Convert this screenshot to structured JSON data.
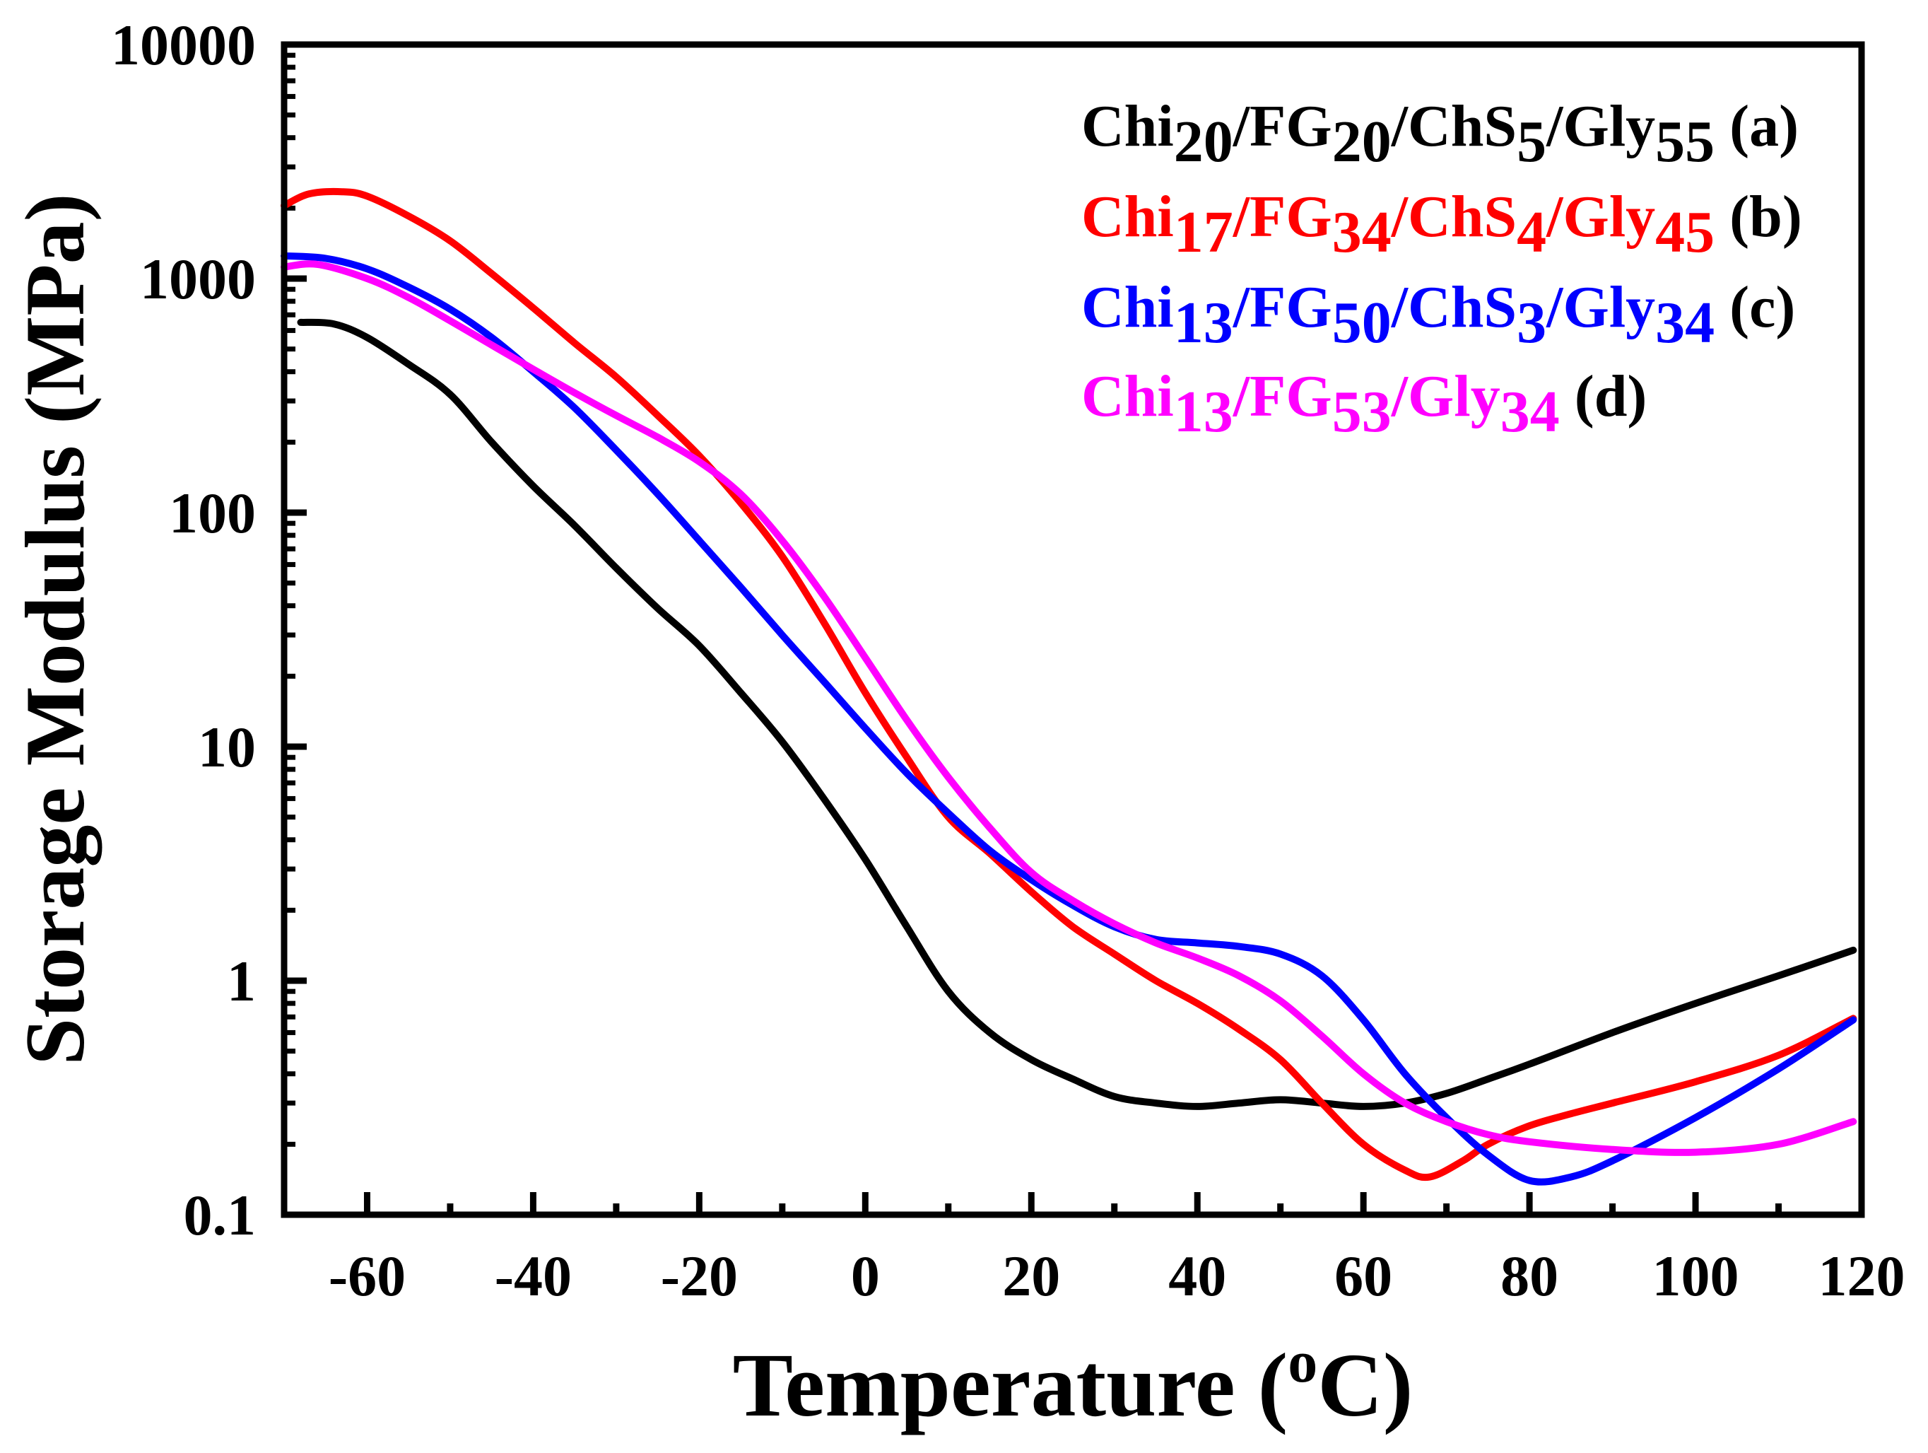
{
  "chart_data": {
    "type": "line",
    "title": "",
    "xlabel": {
      "main": "Temperature (",
      "sup": "o",
      "tail": "C)"
    },
    "ylabel": "Storage Modulus (MPa)",
    "xlim": [
      -70,
      120
    ],
    "ylim": [
      0.1,
      10000
    ],
    "yscale": "log",
    "x_ticks": [
      -60,
      -40,
      -20,
      0,
      20,
      40,
      60,
      80,
      100,
      120
    ],
    "y_ticks": [
      0.1,
      1,
      10,
      100,
      1000,
      10000
    ],
    "x_tick_labels": [
      "-60",
      "-40",
      "-20",
      "0",
      "20",
      "40",
      "60",
      "80",
      "100",
      "120"
    ],
    "y_tick_labels": [
      "0.1",
      "1",
      "10",
      "100",
      "1000",
      "10000"
    ],
    "legend_position": "top-right",
    "series": [
      {
        "name": "Chi20/FG20/ChS5/Gly55 (a)",
        "color": "#000000",
        "legend_parts": [
          {
            "t": "Chi",
            "sub": false
          },
          {
            "t": "20",
            "sub": true
          },
          {
            "t": "/FG",
            "sub": false
          },
          {
            "t": "20",
            "sub": true
          },
          {
            "t": "/ChS",
            "sub": false
          },
          {
            "t": "5",
            "sub": true
          },
          {
            "t": "/Gly",
            "sub": false
          },
          {
            "t": "55",
            "sub": true
          }
        ],
        "legend_tag": "(a)",
        "x": [
          -68,
          -64,
          -60,
          -55,
          -50,
          -45,
          -40,
          -35,
          -30,
          -25,
          -20,
          -15,
          -10,
          -5,
          0,
          5,
          10,
          15,
          20,
          25,
          30,
          35,
          40,
          45,
          50,
          55,
          60,
          65,
          70,
          75,
          80,
          90,
          100,
          110,
          119
        ],
        "y": [
          650,
          640,
          560,
          430,
          320,
          200,
          130,
          88,
          58,
          39,
          27,
          17,
          10.5,
          6,
          3.3,
          1.7,
          0.9,
          0.6,
          0.46,
          0.38,
          0.32,
          0.3,
          0.29,
          0.3,
          0.31,
          0.3,
          0.29,
          0.3,
          0.33,
          0.38,
          0.44,
          0.6,
          0.8,
          1.05,
          1.35
        ]
      },
      {
        "name": "Chi17/FG34/ChS4/Gly45 (b)",
        "color": "#ff0000",
        "legend_parts": [
          {
            "t": "Chi",
            "sub": false
          },
          {
            "t": "17",
            "sub": true
          },
          {
            "t": "/FG",
            "sub": false
          },
          {
            "t": "34",
            "sub": true
          },
          {
            "t": "/ChS",
            "sub": false
          },
          {
            "t": "4",
            "sub": true
          },
          {
            "t": "/Gly",
            "sub": false
          },
          {
            "t": "45",
            "sub": true
          }
        ],
        "legend_tag": "(b)",
        "x": [
          -70,
          -67,
          -63,
          -60,
          -55,
          -50,
          -45,
          -40,
          -35,
          -30,
          -25,
          -20,
          -15,
          -10,
          -5,
          0,
          5,
          10,
          15,
          20,
          25,
          30,
          35,
          40,
          45,
          50,
          55,
          60,
          65,
          68,
          72,
          75,
          80,
          85,
          90,
          100,
          110,
          119
        ],
        "y": [
          2050,
          2300,
          2350,
          2250,
          1850,
          1450,
          1050,
          750,
          530,
          380,
          260,
          175,
          110,
          65,
          34,
          17,
          9,
          5,
          3.5,
          2.4,
          1.7,
          1.3,
          1.0,
          0.8,
          0.62,
          0.46,
          0.3,
          0.2,
          0.155,
          0.145,
          0.17,
          0.2,
          0.24,
          0.27,
          0.3,
          0.37,
          0.48,
          0.69
        ]
      },
      {
        "name": "Chi13/FG50/ChS3/Gly34 (c)",
        "color": "#0000ff",
        "legend_parts": [
          {
            "t": "Chi",
            "sub": false
          },
          {
            "t": "13",
            "sub": true
          },
          {
            "t": "/FG",
            "sub": false
          },
          {
            "t": "50",
            "sub": true
          },
          {
            "t": "/ChS",
            "sub": false
          },
          {
            "t": "3",
            "sub": true
          },
          {
            "t": "/Gly",
            "sub": false
          },
          {
            "t": "34",
            "sub": true
          }
        ],
        "legend_tag": "(c)",
        "x": [
          -70,
          -65,
          -60,
          -55,
          -50,
          -45,
          -40,
          -35,
          -30,
          -25,
          -20,
          -15,
          -10,
          -5,
          0,
          5,
          10,
          15,
          20,
          25,
          30,
          35,
          40,
          45,
          50,
          55,
          60,
          65,
          70,
          75,
          80,
          85,
          90,
          100,
          110,
          119
        ],
        "y": [
          1250,
          1220,
          1100,
          920,
          740,
          560,
          400,
          280,
          185,
          120,
          76,
          48,
          30,
          19,
          12,
          7.7,
          5.2,
          3.6,
          2.7,
          2.1,
          1.7,
          1.5,
          1.45,
          1.4,
          1.3,
          1.05,
          0.68,
          0.4,
          0.26,
          0.18,
          0.14,
          0.145,
          0.17,
          0.26,
          0.42,
          0.68
        ]
      },
      {
        "name": "Chi13/FG53/Gly34 (d)",
        "color": "#ff00ff",
        "legend_parts": [
          {
            "t": "Chi",
            "sub": false
          },
          {
            "t": "13",
            "sub": true
          },
          {
            "t": "/FG",
            "sub": false
          },
          {
            "t": "53",
            "sub": true
          },
          {
            "t": "/Gly",
            "sub": false
          },
          {
            "t": "34",
            "sub": true
          }
        ],
        "legend_tag": "(d)",
        "x": [
          -70,
          -66,
          -60,
          -55,
          -50,
          -45,
          -40,
          -35,
          -30,
          -25,
          -20,
          -15,
          -10,
          -5,
          0,
          5,
          10,
          15,
          20,
          25,
          30,
          35,
          40,
          45,
          50,
          55,
          60,
          65,
          70,
          75,
          80,
          90,
          100,
          110,
          119
        ],
        "y": [
          1120,
          1150,
          1000,
          830,
          660,
          520,
          410,
          325,
          260,
          210,
          165,
          120,
          76,
          44,
          24,
          13,
          7.4,
          4.5,
          2.9,
          2.2,
          1.75,
          1.45,
          1.25,
          1.05,
          0.82,
          0.58,
          0.4,
          0.3,
          0.25,
          0.22,
          0.205,
          0.19,
          0.185,
          0.2,
          0.25
        ]
      }
    ]
  }
}
